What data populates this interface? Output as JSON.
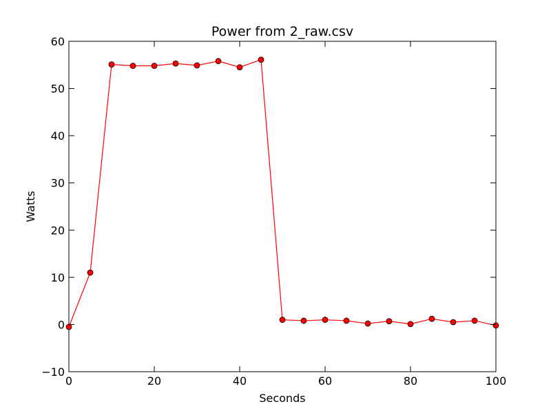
{
  "chart_data": {
    "type": "line",
    "title": "Power from 2_raw.csv",
    "xlabel": "Seconds",
    "ylabel": "Watts",
    "xlim": [
      0,
      100
    ],
    "ylim": [
      -10,
      60
    ],
    "xticks": [
      0,
      20,
      40,
      60,
      80,
      100
    ],
    "yticks": [
      -10,
      0,
      10,
      20,
      30,
      40,
      50,
      60
    ],
    "grid": false,
    "series": [
      {
        "color": "#ff0000",
        "marker": "circle",
        "x": [
          0,
          5,
          10,
          15,
          20,
          25,
          30,
          35,
          40,
          45,
          50,
          55,
          60,
          65,
          70,
          75,
          80,
          85,
          90,
          95,
          100
        ],
        "y": [
          -0.5,
          11.0,
          55.1,
          54.8,
          54.8,
          55.3,
          54.9,
          55.8,
          54.5,
          56.1,
          1.0,
          0.8,
          1.0,
          0.8,
          0.2,
          0.7,
          0.1,
          1.2,
          0.5,
          0.8,
          -0.2
        ]
      }
    ]
  }
}
